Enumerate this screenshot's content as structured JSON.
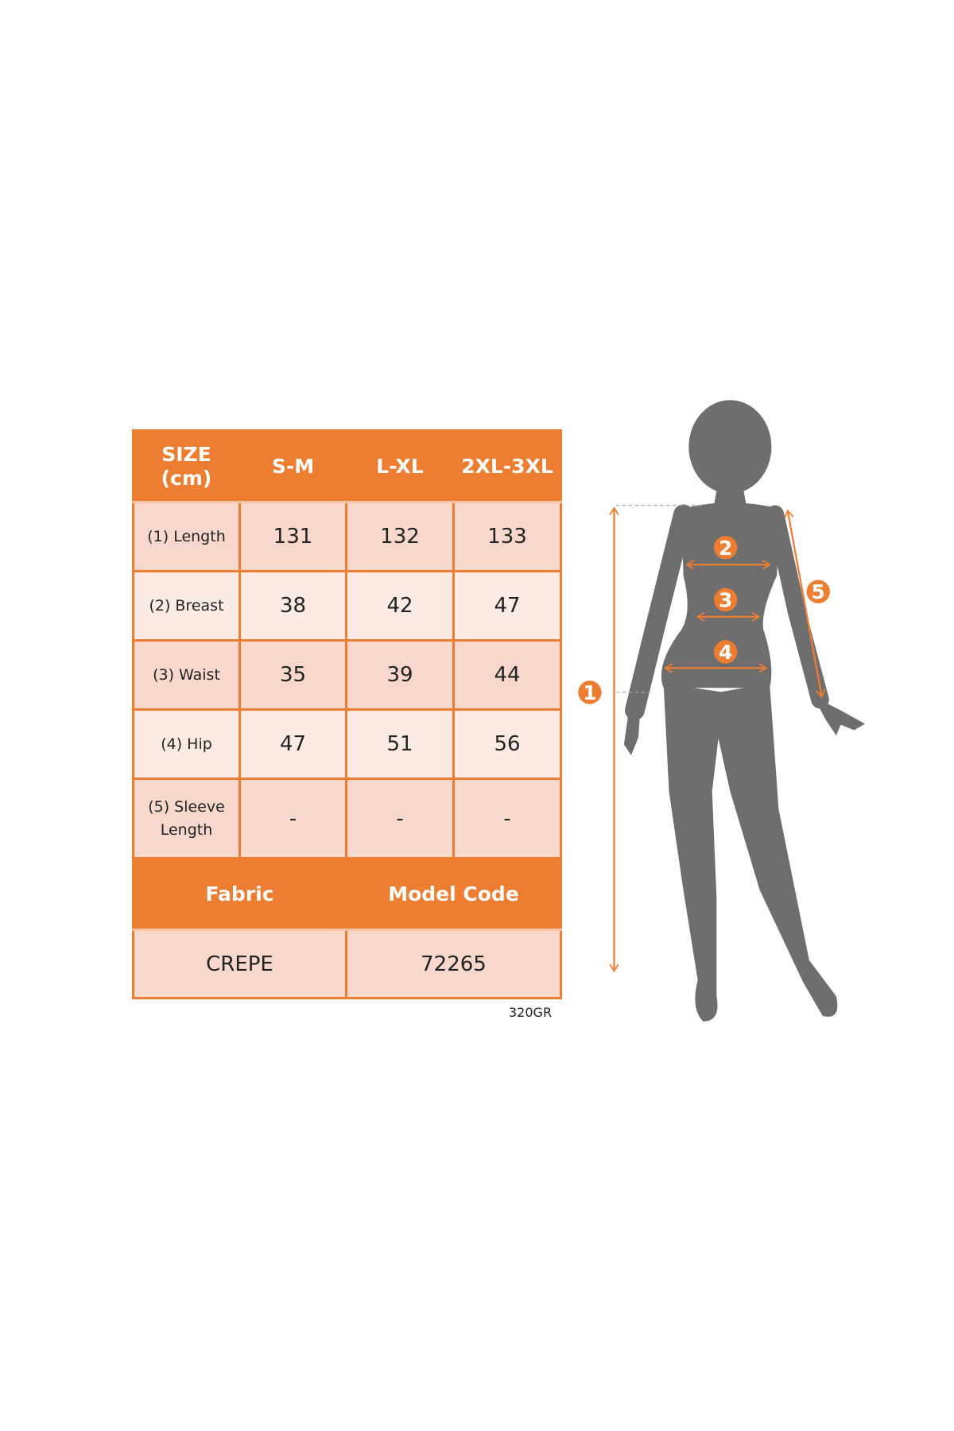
{
  "table": {
    "header": [
      "SIZE\n(cm)",
      "S-M",
      "L-XL",
      "2XL-3XL"
    ],
    "header_line1": "SIZE",
    "header_line2": "(cm)",
    "rows": [
      {
        "label": "(1) Length",
        "values": [
          "131",
          "132",
          "133"
        ]
      },
      {
        "label": "(2) Breast",
        "values": [
          "38",
          "42",
          "47"
        ]
      },
      {
        "label": "(3) Waist",
        "values": [
          "35",
          "39",
          "44"
        ]
      },
      {
        "label": "(4) Hip",
        "values": [
          "47",
          "51",
          "56"
        ]
      },
      {
        "label_line1": "(5) Sleeve",
        "label_line2": "Length",
        "values": [
          "-",
          "-",
          "-"
        ]
      }
    ],
    "fabric_label": "Fabric",
    "model_code_label": "Model Code",
    "fabric_value": "CREPE",
    "model_code_value": "72265"
  },
  "footer_code": "320GR",
  "figure": {
    "markers": [
      "1",
      "2",
      "3",
      "4",
      "5"
    ]
  },
  "colors": {
    "accent": "#ED7D31",
    "cell_dark": "#F8D8CD",
    "cell_light": "#FCEBE5",
    "silhouette": "#6e6e6e"
  }
}
